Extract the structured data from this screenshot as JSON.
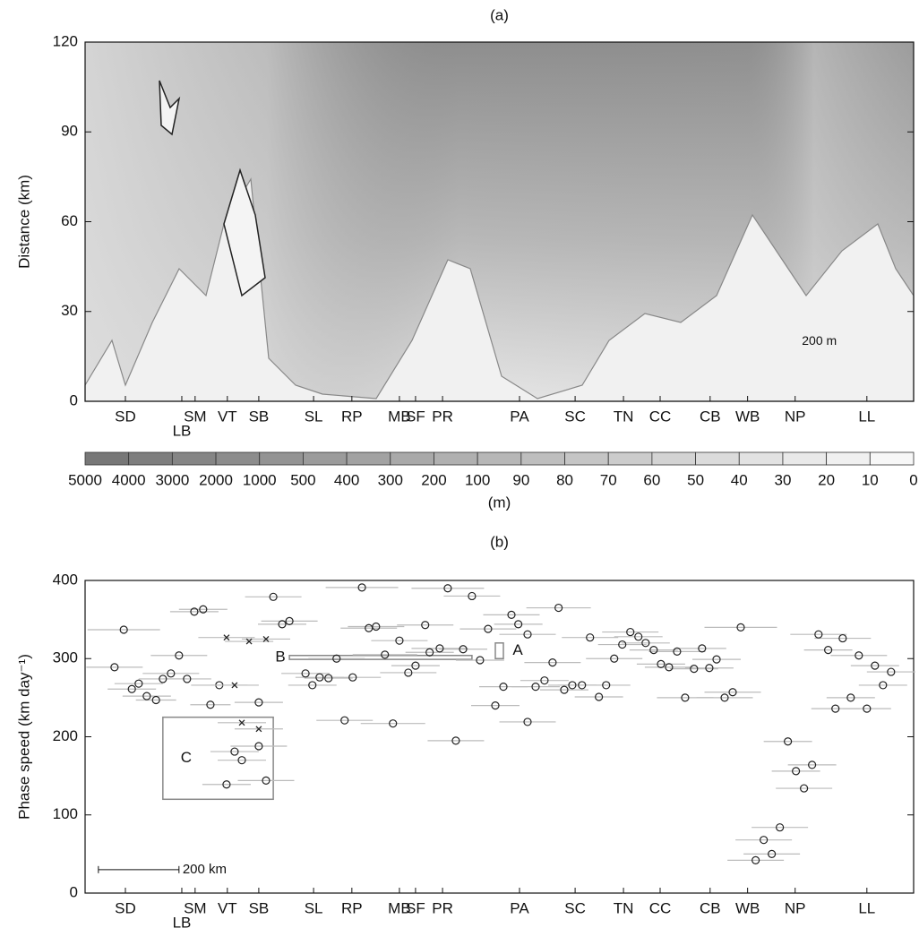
{
  "chart_data": [
    {
      "type": "contour",
      "title": "(a)",
      "ylabel": "Distance (km)",
      "xlim": [
        0,
        2056
      ],
      "ylim": [
        0,
        120
      ],
      "yticks": [
        0,
        30,
        60,
        90,
        120
      ],
      "xticks": [
        {
          "value": 100,
          "label": "SD"
        },
        {
          "value": 240,
          "label": "LB"
        },
        {
          "value": 273,
          "label": "SM"
        },
        {
          "value": 353,
          "label": "VT"
        },
        {
          "value": 431,
          "label": "SB"
        },
        {
          "value": 567,
          "label": "SL"
        },
        {
          "value": 662,
          "label": "RP"
        },
        {
          "value": 780,
          "label": "MB"
        },
        {
          "value": 820,
          "label": "SF"
        },
        {
          "value": 887,
          "label": "PR"
        },
        {
          "value": 1078,
          "label": "PA"
        },
        {
          "value": 1216,
          "label": "SC"
        },
        {
          "value": 1336,
          "label": "TN"
        },
        {
          "value": 1427,
          "label": "CC"
        },
        {
          "value": 1551,
          "label": "CB"
        },
        {
          "value": 1644,
          "label": "WB"
        },
        {
          "value": 1762,
          "label": "NP"
        },
        {
          "value": 1940,
          "label": "LL"
        }
      ],
      "annotations": [
        {
          "text": "200 m",
          "x": 1822,
          "y": 20
        }
      ],
      "colorbar": {
        "label": "(m)",
        "levels": [
          5000,
          4000,
          3000,
          2000,
          1000,
          500,
          400,
          300,
          200,
          100,
          90,
          80,
          70,
          60,
          50,
          40,
          30,
          20,
          10,
          0
        ],
        "color_range": [
          "#777777",
          "#f7f7f7"
        ]
      }
    },
    {
      "type": "scatter",
      "title": "(b)",
      "ylabel": "Phase speed (km day⁻¹)",
      "xlim": [
        0,
        2056
      ],
      "ylim": [
        0,
        400
      ],
      "yticks": [
        0,
        100,
        200,
        300,
        400
      ],
      "xticks": [
        {
          "value": 100,
          "label": "SD"
        },
        {
          "value": 240,
          "label": "LB"
        },
        {
          "value": 273,
          "label": "SM"
        },
        {
          "value": 353,
          "label": "VT"
        },
        {
          "value": 431,
          "label": "SB"
        },
        {
          "value": 567,
          "label": "SL"
        },
        {
          "value": 662,
          "label": "RP"
        },
        {
          "value": 780,
          "label": "MB"
        },
        {
          "value": 820,
          "label": "SF"
        },
        {
          "value": 887,
          "label": "PR"
        },
        {
          "value": 1078,
          "label": "PA"
        },
        {
          "value": 1216,
          "label": "SC"
        },
        {
          "value": 1336,
          "label": "TN"
        },
        {
          "value": 1427,
          "label": "CC"
        },
        {
          "value": 1551,
          "label": "CB"
        },
        {
          "value": 1644,
          "label": "WB"
        },
        {
          "value": 1762,
          "label": "NP"
        },
        {
          "value": 1940,
          "label": "LL"
        }
      ],
      "series": [
        {
          "marker": "o",
          "color": "#222222",
          "x": [
            73,
            96,
            116,
            133,
            153,
            176,
            193,
            213,
            233,
            253,
            271,
            293,
            311,
            333,
            371,
            389,
            431,
            449,
            351,
            431,
            467,
            489,
            507,
            547,
            564,
            582,
            604,
            624,
            644,
            664,
            687,
            704,
            722,
            744,
            764,
            780,
            802,
            820,
            844,
            855,
            880,
            900,
            920,
            938,
            960,
            980,
            1000,
            1018,
            1038,
            1058,
            1075,
            1098,
            1098,
            1118,
            1140,
            1160,
            1175,
            1189,
            1209,
            1233,
            1253,
            1275,
            1293,
            1313,
            1333,
            1353,
            1373,
            1391,
            1411,
            1429,
            1449,
            1469,
            1489,
            1511,
            1531,
            1549,
            1567,
            1587,
            1607,
            1627,
            1664,
            1684,
            1704,
            1724,
            1744,
            1764,
            1784,
            1804,
            1820,
            1844,
            1862,
            1880,
            1900,
            1920,
            1940,
            1960,
            1980,
            2000
          ],
          "values": [
            289,
            337,
            261,
            268,
            252,
            247,
            274,
            281,
            304,
            274,
            360,
            363,
            241,
            266,
            181,
            170,
            188,
            144,
            139,
            244,
            379,
            344,
            348,
            281,
            266,
            276,
            275,
            300,
            221,
            276,
            391,
            339,
            341,
            305,
            217,
            323,
            282,
            291,
            343,
            308,
            313,
            390,
            195,
            312,
            380,
            298,
            338,
            240,
            264,
            356,
            344,
            219,
            331,
            264,
            272,
            295,
            365,
            260,
            266,
            266,
            327,
            251,
            266,
            300,
            318,
            334,
            328,
            320,
            311,
            293,
            289,
            309,
            250,
            287,
            313,
            288,
            299,
            250,
            257,
            340,
            42,
            68,
            50,
            84,
            194,
            156,
            134,
            164,
            331,
            311,
            236,
            326,
            250,
            304,
            236,
            291,
            266,
            283
          ],
          "xerr": [
            70,
            90,
            60,
            60,
            60,
            50,
            60,
            70,
            70,
            60,
            60,
            60,
            50,
            70,
            60,
            60,
            70,
            70,
            60,
            60,
            70,
            60,
            70,
            60,
            60,
            60,
            60,
            70,
            70,
            70,
            90,
            70,
            70,
            80,
            80,
            70,
            70,
            60,
            70,
            60,
            70,
            90,
            70,
            60,
            70,
            60,
            70,
            60,
            60,
            70,
            60,
            70,
            70,
            60,
            60,
            70,
            80,
            60,
            60,
            60,
            70,
            60,
            60,
            70,
            60,
            70,
            60,
            60,
            60,
            60,
            60,
            70,
            70,
            60,
            60,
            60,
            60,
            70,
            70,
            90,
            70,
            70,
            70,
            70,
            60,
            60,
            70,
            60,
            70,
            60,
            60,
            70,
            60,
            70,
            60,
            60,
            60,
            60
          ]
        },
        {
          "marker": "x",
          "color": "#222222",
          "x": [
            389,
            431,
            351,
            407,
            449,
            371
          ],
          "values": [
            218,
            210,
            327,
            322,
            325,
            266
          ],
          "xerr": [
            60,
            60,
            70,
            60,
            60,
            60
          ]
        }
      ],
      "annotations": [
        {
          "text": "A",
          "x": [
            1018,
            1038
          ],
          "y": [
            300,
            320
          ]
        },
        {
          "text": "B",
          "x": [
            507,
            960
          ],
          "y": [
            299,
            304
          ]
        },
        {
          "text": "C",
          "x": [
            193,
            467
          ],
          "y": [
            120,
            225
          ]
        }
      ],
      "scalebar": {
        "text": "200 km",
        "x": [
          33,
          233
        ],
        "y": 30
      }
    }
  ]
}
